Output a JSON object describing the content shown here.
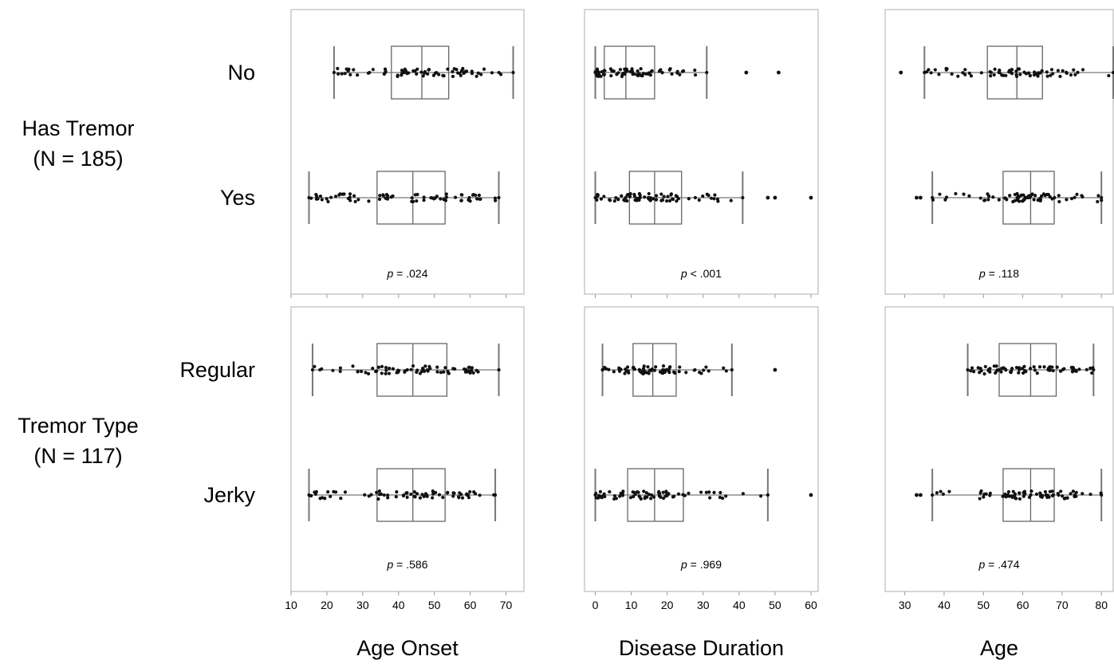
{
  "chart_data": {
    "type": "box-dot-plot",
    "row_groups": [
      {
        "label_line1": "Has Tremor",
        "label_line2": "(N = 185)",
        "categories": [
          "No",
          "Yes"
        ]
      },
      {
        "label_line1": "Tremor Type",
        "label_line2": "(N = 117)",
        "categories": [
          "Regular",
          "Jerky"
        ]
      }
    ],
    "columns": [
      {
        "xlabel": "Age Onset",
        "xlim": [
          10,
          75
        ],
        "ticks": [
          10,
          20,
          30,
          40,
          50,
          60,
          70
        ]
      },
      {
        "xlabel": "Disease Duration",
        "xlim": [
          -3,
          62
        ],
        "ticks": [
          0,
          10,
          20,
          30,
          40,
          50,
          60
        ]
      },
      {
        "xlabel": "Age",
        "xlim": [
          25,
          83
        ],
        "ticks": [
          30,
          40,
          50,
          60,
          70,
          80
        ]
      }
    ],
    "panels": [
      {
        "row": 0,
        "col": 0,
        "p_prefix": "p",
        "p_value": "= .024",
        "boxes": [
          {
            "category": "No",
            "whisker_low": 22,
            "q1": 38,
            "median": 46.5,
            "q3": 54,
            "whisker_high": 72
          },
          {
            "category": "Yes",
            "whisker_low": 15,
            "q1": 34,
            "median": 44,
            "q3": 53,
            "whisker_high": 68
          }
        ]
      },
      {
        "row": 0,
        "col": 1,
        "p_prefix": "p",
        "p_value": "< .001",
        "boxes": [
          {
            "category": "No",
            "whisker_low": 0,
            "q1": 2.5,
            "median": 8.5,
            "q3": 16.5,
            "whisker_high": 31,
            "outliers": [
              42,
              51
            ]
          },
          {
            "category": "Yes",
            "whisker_low": 0,
            "q1": 9.5,
            "median": 16.5,
            "q3": 24,
            "whisker_high": 41,
            "outliers": [
              48,
              50,
              60
            ]
          }
        ]
      },
      {
        "row": 0,
        "col": 2,
        "p_prefix": "p",
        "p_value": "= .118",
        "boxes": [
          {
            "category": "No",
            "whisker_low": 35,
            "q1": 51,
            "median": 58.5,
            "q3": 65,
            "whisker_high": 83,
            "outliers": [
              29
            ]
          },
          {
            "category": "Yes",
            "whisker_low": 37,
            "q1": 55,
            "median": 62,
            "q3": 68,
            "whisker_high": 80,
            "outliers": [
              33,
              34
            ]
          }
        ]
      },
      {
        "row": 1,
        "col": 0,
        "p_prefix": "p",
        "p_value": "= .586",
        "boxes": [
          {
            "category": "Regular",
            "whisker_low": 16,
            "q1": 34,
            "median": 44,
            "q3": 53.5,
            "whisker_high": 68
          },
          {
            "category": "Jerky",
            "whisker_low": 15,
            "q1": 34,
            "median": 44,
            "q3": 53,
            "whisker_high": 67
          }
        ]
      },
      {
        "row": 1,
        "col": 1,
        "p_prefix": "p",
        "p_value": "= .969",
        "boxes": [
          {
            "category": "Regular",
            "whisker_low": 2,
            "q1": 10.5,
            "median": 16,
            "q3": 22.5,
            "whisker_high": 38,
            "outliers": [
              50
            ]
          },
          {
            "category": "Jerky",
            "whisker_low": 0,
            "q1": 9,
            "median": 16.5,
            "q3": 24.5,
            "whisker_high": 48,
            "outliers": [
              60
            ]
          }
        ]
      },
      {
        "row": 1,
        "col": 2,
        "p_prefix": "p",
        "p_value": "= .474",
        "boxes": [
          {
            "category": "Regular",
            "whisker_low": 46,
            "q1": 54,
            "median": 62,
            "q3": 68.5,
            "whisker_high": 78
          },
          {
            "category": "Jerky",
            "whisker_low": 37,
            "q1": 55,
            "median": 62,
            "q3": 68,
            "whisker_high": 80,
            "outliers": [
              33,
              34
            ]
          }
        ]
      }
    ]
  }
}
